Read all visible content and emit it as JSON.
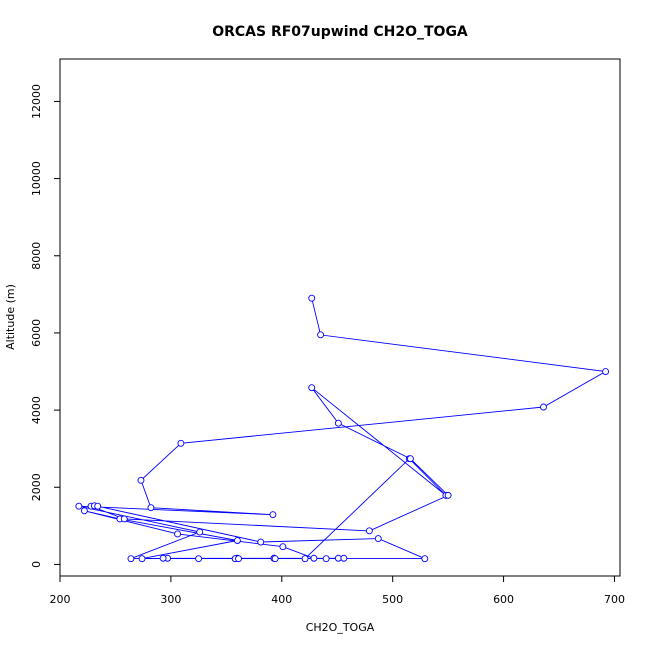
{
  "chart_data": {
    "type": "line",
    "title": "ORCAS RF07upwind CH2O_TOGA",
    "xlabel": "CH2O_TOGA",
    "ylabel": "Altitude (m)",
    "xlim": [
      200,
      705
    ],
    "ylim": [
      -300,
      13100
    ],
    "xticks": [
      200,
      300,
      400,
      500,
      600,
      700
    ],
    "yticks": [
      0,
      2000,
      4000,
      6000,
      8000,
      10000,
      12000
    ],
    "grid": false,
    "series_color": "#0000ff",
    "series": [
      {
        "x": [
          427,
          435,
          692,
          636,
          309,
          273,
          282,
          392,
          217,
          326,
          264,
          297,
          451,
          358,
          274,
          360,
          254,
          222,
          306,
          401,
          429,
          360,
          293,
          440,
          456,
          421,
          515,
          548,
          427,
          451,
          516,
          550,
          479,
          258,
          228,
          231,
          234,
          381,
          487,
          529,
          358,
          325,
          393,
          393,
          361,
          394
        ],
        "y": [
          6900,
          5950,
          5000,
          4080,
          3140,
          2180,
          1470,
          1290,
          1510,
          840,
          150,
          160,
          160,
          150,
          150,
          620,
          1180,
          1390,
          790,
          460,
          160,
          160,
          160,
          150,
          160,
          150,
          2740,
          1790,
          4580,
          3660,
          2740,
          1790,
          870,
          1180,
          1510,
          1520,
          1510,
          580,
          670,
          150,
          150,
          150,
          160,
          160,
          150,
          150
        ]
      }
    ]
  }
}
